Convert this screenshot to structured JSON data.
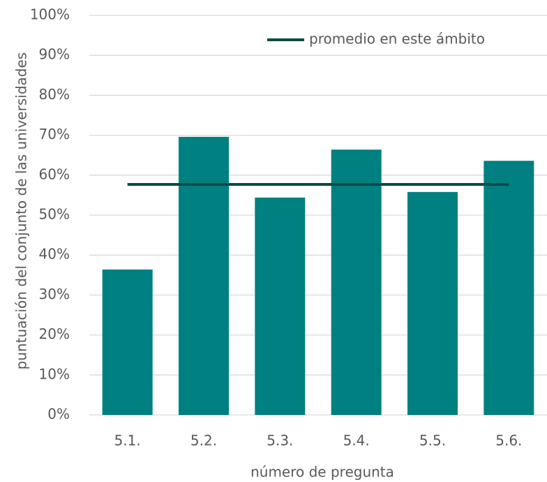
{
  "chart_data": {
    "type": "bar",
    "x_label": "número de pregunta",
    "y_label": "puntuación del conjunto de las universidades",
    "categories": [
      "5.1.",
      "5.2.",
      "5.3.",
      "5.4.",
      "5.5.",
      "5.6."
    ],
    "values": [
      36.4,
      69.6,
      54.4,
      66.4,
      55.8,
      63.6
    ],
    "color": "#008080",
    "reference_line": {
      "name": "promedio en este ámbito",
      "value": 57.7,
      "color": "#0b4a45"
    },
    "ylim": [
      0,
      100
    ],
    "yticks": [
      {
        "value": 0,
        "label": "0%"
      },
      {
        "value": 10,
        "label": "10%"
      },
      {
        "value": 20,
        "label": "20%"
      },
      {
        "value": 30,
        "label": "30%"
      },
      {
        "value": 40,
        "label": "40%"
      },
      {
        "value": 50,
        "label": "50%"
      },
      {
        "value": 60,
        "label": "60%"
      },
      {
        "value": 70,
        "label": "70%"
      },
      {
        "value": 80,
        "label": "80%"
      },
      {
        "value": 90,
        "label": "90%"
      },
      {
        "value": 100,
        "label": "100%"
      }
    ],
    "grid": true
  }
}
